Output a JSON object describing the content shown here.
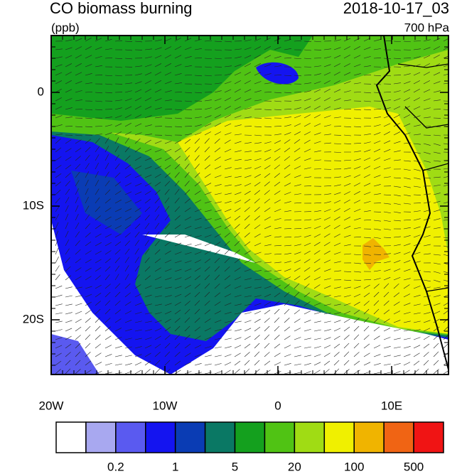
{
  "header": {
    "title": "CO biomass burning",
    "units": "(ppb)",
    "time": "2018-10-17_03",
    "level": "700 hPa"
  },
  "map": {
    "lat_labels": [
      "0",
      "10S",
      "20S"
    ],
    "lon_labels": [
      "20W",
      "10W",
      "0",
      "10E"
    ]
  },
  "colorbar": {
    "colors": [
      "#ffffff",
      "#a8a8f0",
      "#5a5af0",
      "#1414f0",
      "#0a3cb4",
      "#0a7864",
      "#14a01e",
      "#50c314",
      "#a0dc14",
      "#f0f000",
      "#f0b400",
      "#f06414",
      "#f01414"
    ],
    "labels": [
      "0.2",
      "1",
      "5",
      "20",
      "100",
      "500"
    ]
  }
}
